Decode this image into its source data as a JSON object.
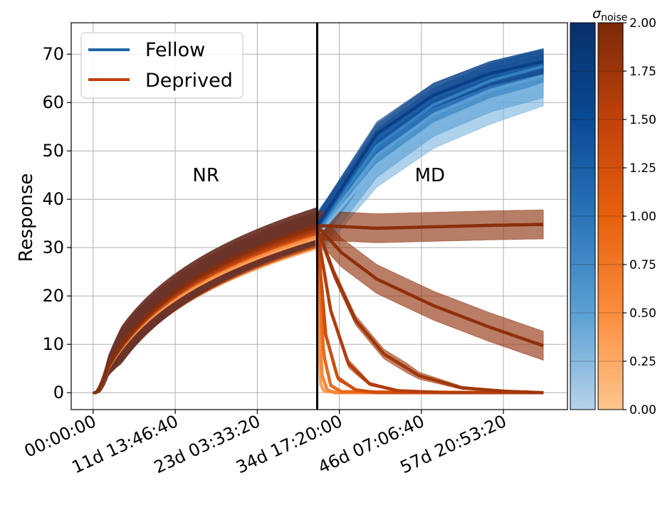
{
  "chart_data": {
    "type": "line",
    "ylabel": "Response",
    "xlabel": "",
    "x_tick_labels": [
      "00:00:00",
      "11d 13:46:40",
      "23d 03:33:20",
      "34d 17:20:00",
      "46d 07:06:40",
      "57d 20:53:20"
    ],
    "x_tick_values_days": [
      0,
      11.574,
      23.148,
      34.722,
      46.296,
      57.87
    ],
    "xlim_days": [
      -3.1,
      66.9
    ],
    "ylim": [
      -3.5,
      76.5
    ],
    "y_ticks": [
      0,
      10,
      20,
      30,
      40,
      50,
      60,
      70
    ],
    "grid": true,
    "divider_x_days": 31.6,
    "phase_labels": [
      {
        "text": "NR",
        "x_days": 15.9,
        "y": 45
      },
      {
        "text": "MD",
        "x_days": 47.5,
        "y": 45
      }
    ],
    "legend": {
      "placement": "upper-left",
      "entries": [
        {
          "label": "Fellow",
          "color": "#1f66a8"
        },
        {
          "label": "Deprived",
          "color": "#c2410c"
        }
      ]
    },
    "colorbar": {
      "title": "σnoise",
      "title_main": "σ",
      "title_sub": "noise",
      "range": [
        0.0,
        2.0
      ],
      "ticks": [
        "0.00",
        "0.25",
        "0.50",
        "0.75",
        "1.00",
        "1.25",
        "1.50",
        "1.75",
        "2.00"
      ],
      "blue_stops": [
        "#b7d2ea",
        "#5aa0d4",
        "#2a74b8",
        "#0a4a94",
        "#08306b"
      ],
      "orange_stops": [
        "#fdc58e",
        "#fb8d3d",
        "#e7600d",
        "#c2410c",
        "#7a2a08"
      ]
    },
    "series": [
      {
        "group": "Fellow",
        "sigma": 0.3,
        "color": "#7db4e0",
        "x": [
          0,
          31.6,
          40,
          48,
          56,
          63.5
        ],
        "y": [
          0,
          32.5,
          47.0,
          55.0,
          60.0,
          63.8
        ],
        "band": 4.5
      },
      {
        "group": "Fellow",
        "sigma": 0.6,
        "color": "#5a9fd4",
        "x": [
          0,
          31.6,
          40,
          48,
          56,
          63.5
        ],
        "y": [
          0,
          33.0,
          49.0,
          57.5,
          62.5,
          65.5
        ],
        "band": 4.5
      },
      {
        "group": "Fellow",
        "sigma": 1.0,
        "color": "#3381c0",
        "x": [
          0,
          31.6,
          40,
          48,
          56,
          63.5
        ],
        "y": [
          0,
          33.5,
          51.0,
          59.5,
          64.5,
          67.5
        ],
        "band": 3.5
      },
      {
        "group": "Fellow",
        "sigma": 1.5,
        "color": "#1a5ea8",
        "x": [
          0,
          31.6,
          40,
          48,
          56,
          63.5
        ],
        "y": [
          0,
          34.0,
          52.5,
          61.0,
          65.5,
          68.2
        ],
        "band": 3.0
      },
      {
        "group": "Fellow",
        "sigma": 2.0,
        "color": "#0b3f85",
        "x": [
          0,
          31.6,
          40,
          48,
          56,
          63.5
        ],
        "y": [
          0,
          34.5,
          53.5,
          61.5,
          66.0,
          68.5
        ],
        "band": 2.5
      },
      {
        "group": "Deprived",
        "sigma": 2.0,
        "color": "#8a2e0a",
        "x": [
          0,
          31.6,
          33,
          40,
          48,
          56,
          63.5
        ],
        "y": [
          0,
          34.5,
          34.5,
          34.0,
          34.3,
          34.6,
          34.8
        ],
        "band": 3.0
      },
      {
        "group": "Deprived",
        "sigma": 1.75,
        "color": "#8f2f0a",
        "x": [
          0,
          31.6,
          35,
          40,
          48,
          56,
          63.5
        ],
        "y": [
          0,
          34.5,
          29.0,
          23.5,
          18.0,
          13.5,
          9.7
        ],
        "band": 3.0
      },
      {
        "group": "Deprived",
        "sigma": 1.5,
        "color": "#a0360a",
        "x": [
          0,
          31.6,
          34,
          37,
          41,
          46,
          52,
          58,
          63.5
        ],
        "y": [
          0,
          34.0,
          24.5,
          15.0,
          8.0,
          3.5,
          1.0,
          0.3,
          0.0
        ],
        "band": 1.0
      },
      {
        "group": "Deprived",
        "sigma": 1.25,
        "color": "#b33d0b",
        "x": [
          0,
          31.6,
          33.5,
          36,
          39,
          43,
          50,
          63.5
        ],
        "y": [
          0,
          33.5,
          17.0,
          6.0,
          1.8,
          0.4,
          0.0,
          0.0
        ],
        "band": 0.8
      },
      {
        "group": "Deprived",
        "sigma": 1.0,
        "color": "#d04e0c",
        "x": [
          0,
          31.6,
          32.8,
          34.5,
          37,
          40,
          63.5
        ],
        "y": [
          0,
          33.0,
          12.0,
          3.0,
          0.6,
          0.0,
          0.0
        ],
        "band": 0.8
      },
      {
        "group": "Deprived",
        "sigma": 0.75,
        "color": "#e86a1e",
        "x": [
          0,
          31.6,
          32.5,
          33.5,
          35,
          63.5
        ],
        "y": [
          0,
          33.0,
          8.0,
          1.5,
          0.2,
          0.0
        ],
        "band": 0.8
      },
      {
        "group": "Deprived",
        "sigma": 0.5,
        "color": "#f7883a",
        "x": [
          0,
          31.6,
          32.2,
          33.0,
          34.0,
          63.5
        ],
        "y": [
          0,
          32.5,
          4.0,
          0.6,
          0.0,
          0.0
        ],
        "band": 0.6
      },
      {
        "group": "Deprived",
        "sigma": 0.25,
        "color": "#fda158",
        "x": [
          0,
          31.6,
          32.0,
          32.6,
          63.5
        ],
        "y": [
          0,
          32.0,
          2.0,
          0.2,
          0.0
        ],
        "band": 0.6
      }
    ]
  }
}
